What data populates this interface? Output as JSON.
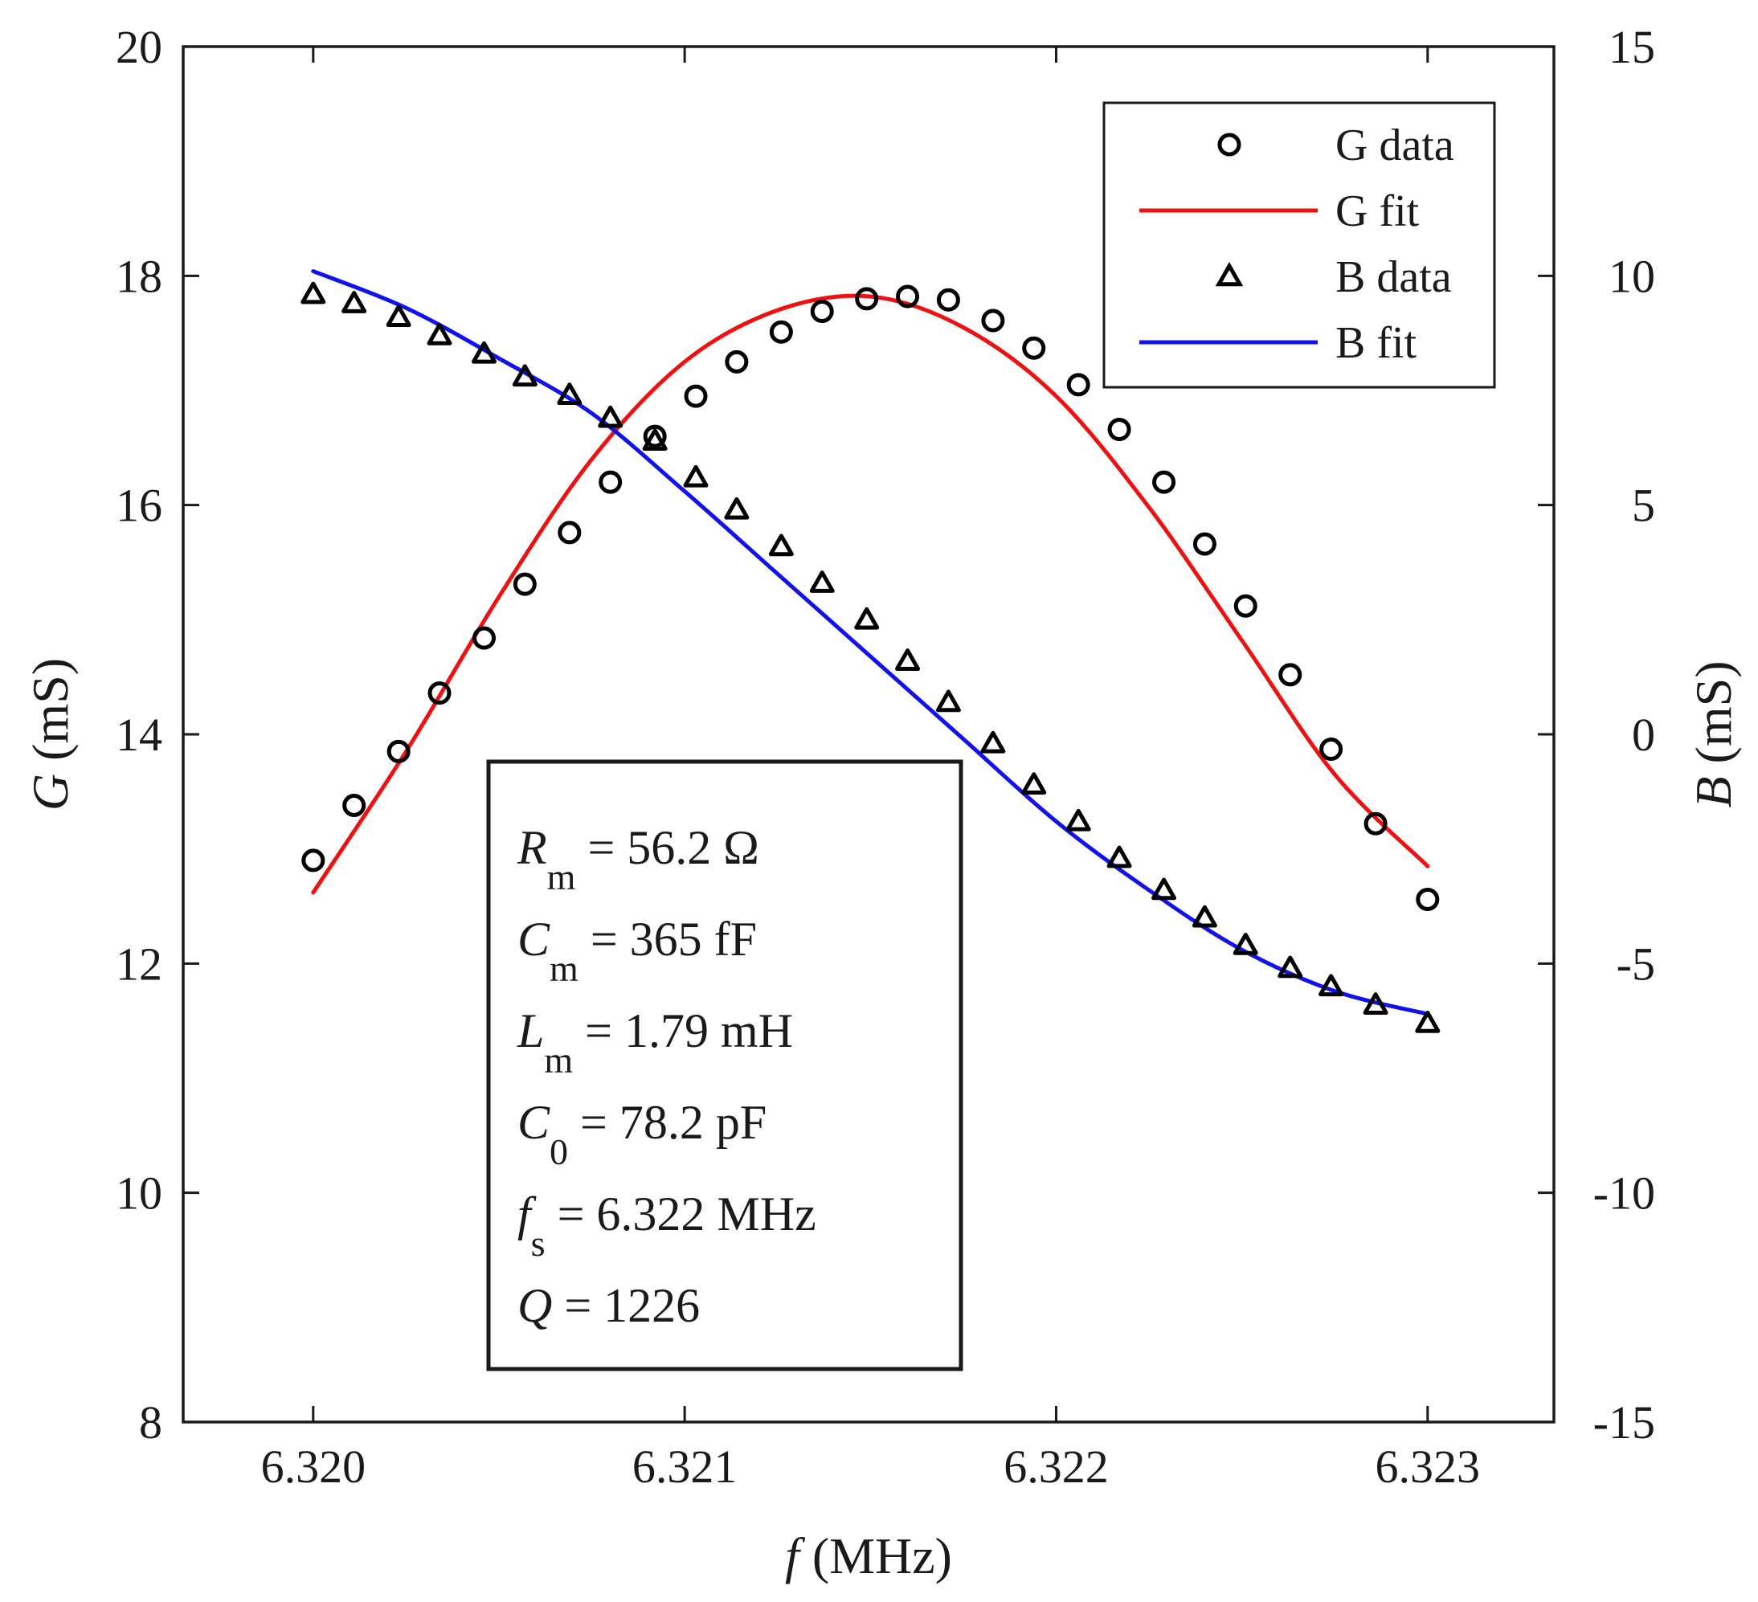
{
  "chart_data": {
    "type": "line",
    "xlabel": {
      "symbol": "f",
      "unit": " (MHz)"
    },
    "ylabel_left": {
      "symbol": "G",
      "unit": " (mS)"
    },
    "ylabel_right": {
      "symbol": "B",
      "unit": " (mS)"
    },
    "xlim": [
      6.31965,
      6.32334
    ],
    "ylim_left": [
      8,
      20
    ],
    "ylim_right": [
      -15,
      15
    ],
    "xticks": [
      6.32,
      6.321,
      6.322,
      6.323
    ],
    "xtick_labels": [
      "6.320",
      "6.321",
      "6.322",
      "6.323"
    ],
    "yticks_left": [
      8,
      10,
      12,
      14,
      16,
      18,
      20
    ],
    "yticks_right": [
      -15,
      -10,
      -5,
      0,
      5,
      10,
      15
    ],
    "legend_position": "top-right",
    "legend": [
      {
        "label": "G data",
        "marker": "circle",
        "color": "#000000"
      },
      {
        "label": "G fit",
        "line": true,
        "color": "#ee1111"
      },
      {
        "label": "B data",
        "marker": "triangle",
        "color": "#000000"
      },
      {
        "label": "B fit",
        "line": true,
        "color": "#1111ee"
      }
    ],
    "x": [
      6.32,
      6.32011,
      6.32023,
      6.32034,
      6.32046,
      6.32057,
      6.32069,
      6.3208,
      6.32092,
      6.32103,
      6.32114,
      6.32126,
      6.32137,
      6.32149,
      6.3216,
      6.32171,
      6.32183,
      6.32194,
      6.32206,
      6.32217,
      6.32229,
      6.3224,
      6.32251,
      6.32263,
      6.32274,
      6.32286,
      6.323
    ],
    "series": [
      {
        "name": "G data",
        "axis": "left",
        "kind": "scatter",
        "marker": "circle",
        "values": [
          12.9,
          13.38,
          13.85,
          14.36,
          14.84,
          15.31,
          15.76,
          16.2,
          16.6,
          16.95,
          17.25,
          17.51,
          17.69,
          17.8,
          17.82,
          17.79,
          17.61,
          17.37,
          17.05,
          16.66,
          16.2,
          15.66,
          15.12,
          14.52,
          13.87,
          13.22,
          12.56
        ]
      },
      {
        "name": "B data",
        "axis": "right",
        "kind": "scatter",
        "marker": "triangle",
        "values": [
          9.6,
          9.4,
          9.1,
          8.7,
          8.3,
          7.8,
          7.4,
          6.9,
          6.4,
          5.6,
          4.9,
          4.1,
          3.3,
          2.5,
          1.6,
          0.7,
          -0.2,
          -1.1,
          -1.9,
          -2.7,
          -3.4,
          -4.0,
          -4.6,
          -5.1,
          -5.5,
          -5.9,
          -6.3
        ]
      },
      {
        "name": "G fit",
        "axis": "left",
        "kind": "line",
        "color": "#ee1111",
        "x": [
          6.32,
          6.32025,
          6.3205,
          6.32075,
          6.321,
          6.32125,
          6.3215,
          6.32175,
          6.322,
          6.32225,
          6.3225,
          6.32275,
          6.323
        ],
        "values": [
          12.62,
          13.85,
          15.2,
          16.4,
          17.25,
          17.7,
          17.82,
          17.55,
          16.95,
          15.98,
          14.82,
          13.65,
          12.85
        ]
      },
      {
        "name": "B fit",
        "axis": "right",
        "kind": "line",
        "color": "#1111ee",
        "x": [
          6.32,
          6.32025,
          6.3205,
          6.32075,
          6.321,
          6.32125,
          6.3215,
          6.32175,
          6.322,
          6.32225,
          6.3225,
          6.32275,
          6.323
        ],
        "values": [
          10.1,
          9.3,
          8.2,
          7.0,
          5.3,
          3.5,
          1.7,
          -0.1,
          -1.9,
          -3.4,
          -4.7,
          -5.6,
          -6.1
        ]
      }
    ],
    "annotation": [
      {
        "sym": "R",
        "sub": "m",
        "rest": " = 56.2 Ω"
      },
      {
        "sym": "C",
        "sub": "m",
        "rest": " = 365 fF"
      },
      {
        "sym": "L",
        "sub": "m",
        "rest": " = 1.79 mH"
      },
      {
        "sym": "C",
        "sub": "0",
        "rest": " = 78.2 pF"
      },
      {
        "sym": "f",
        "sub": "s",
        "rest": " = 6.322 MHz"
      },
      {
        "sym": "Q",
        "sub": "",
        "rest": " = 1226"
      }
    ]
  }
}
